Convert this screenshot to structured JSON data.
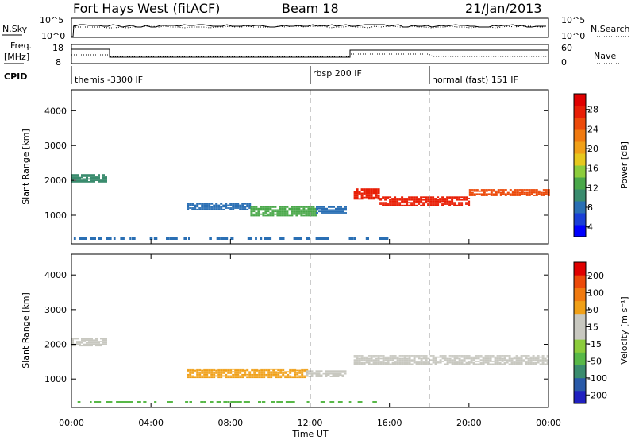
{
  "header": {
    "station": "Fort Hays West (fitACF)",
    "beam": "Beam 18",
    "date": "21/Jan/2013"
  },
  "noise_panel": {
    "left_label": "N.Sky",
    "left_ticks": [
      "10^5",
      "10^0"
    ],
    "right_label": "N.Search",
    "right_ticks": [
      "10^5",
      "10^0"
    ]
  },
  "freq_panel": {
    "left_label_line1": "Freq.",
    "left_label_line2": "[MHz]",
    "left_ticks": [
      "18",
      "8"
    ],
    "right_label": "Nave",
    "right_ticks": [
      "60",
      "0"
    ]
  },
  "cpid": {
    "label": "CPID",
    "segments": [
      {
        "start": 0.0,
        "name": "themis -3300 IF"
      },
      {
        "start": 12.0,
        "name": "rbsp 200 IF"
      },
      {
        "start": 18.0,
        "name": "normal (fast) 151 IF"
      }
    ]
  },
  "chart_data": [
    {
      "type": "heatmap",
      "name": "power",
      "ylabel": "Slant Range [km]",
      "ylim": [
        180,
        4600
      ],
      "xlim": [
        0,
        24
      ],
      "yticks": [
        "1000",
        "2000",
        "3000",
        "4000"
      ],
      "colorbar": {
        "label": "Power [dB]",
        "ticks": [
          "28",
          "24",
          "20",
          "16",
          "12",
          "8",
          "4"
        ],
        "range": [
          0,
          30
        ],
        "colors": [
          "#0000ff",
          "#1a3fd6",
          "#2a6fb4",
          "#3a8c6e",
          "#4aa84a",
          "#8ccc3c",
          "#e6c81e",
          "#f0a018",
          "#f07a10",
          "#ec4a0a",
          "#e81e06",
          "#e00000"
        ]
      },
      "regions": [
        {
          "x0": 0.0,
          "x1": 1.7,
          "y": 2050,
          "w": 220,
          "c": "#3a8c6e"
        },
        {
          "x0": 5.8,
          "x1": 9.0,
          "y": 1230,
          "w": 170,
          "c": "#2a6fb4"
        },
        {
          "x0": 9.0,
          "x1": 12.3,
          "y": 1100,
          "w": 260,
          "c": "#4aa84a"
        },
        {
          "x0": 12.3,
          "x1": 13.8,
          "y": 1150,
          "w": 200,
          "c": "#2a6fb4"
        },
        {
          "x0": 14.2,
          "x1": 15.5,
          "y": 1600,
          "w": 300,
          "c": "#e81e06"
        },
        {
          "x0": 15.5,
          "x1": 20.0,
          "y": 1400,
          "w": 280,
          "c": "#e81e06"
        },
        {
          "x0": 20.0,
          "x1": 24.0,
          "y": 1650,
          "w": 200,
          "c": "#ec4a0a"
        }
      ]
    },
    {
      "type": "heatmap",
      "name": "velocity",
      "ylabel": "Slant Range [km]",
      "ylim": [
        180,
        4600
      ],
      "xlim": [
        0,
        24
      ],
      "yticks": [
        "1000",
        "2000",
        "3000",
        "4000"
      ],
      "xticks": [
        "00:00",
        "04:00",
        "08:00",
        "12:00",
        "16:00",
        "20:00",
        "00:00"
      ],
      "xlabel": "Time UT",
      "colorbar": {
        "label": "Velocity [m s⁻¹]",
        "ticks": [
          "200",
          "100",
          "50",
          "15",
          "-15",
          "-50",
          "-100",
          "-200"
        ],
        "colors": [
          "#2020c0",
          "#2a5aa8",
          "#3a8c6e",
          "#58b848",
          "#8ccc3c",
          "#c8c8c0",
          "#c8c8c0",
          "#f0a018",
          "#f07a10",
          "#ec4a0a",
          "#e00000"
        ]
      },
      "regions": [
        {
          "x0": 0.0,
          "x1": 1.7,
          "y": 2050,
          "w": 220,
          "c": "#c8c8c0"
        },
        {
          "x0": 5.8,
          "x1": 11.8,
          "y": 1150,
          "w": 250,
          "c": "#f0a018"
        },
        {
          "x0": 11.8,
          "x1": 13.8,
          "y": 1150,
          "w": 200,
          "c": "#c8c8c0"
        },
        {
          "x0": 14.2,
          "x1": 24.0,
          "y": 1550,
          "w": 280,
          "c": "#c8c8c0"
        }
      ]
    }
  ]
}
